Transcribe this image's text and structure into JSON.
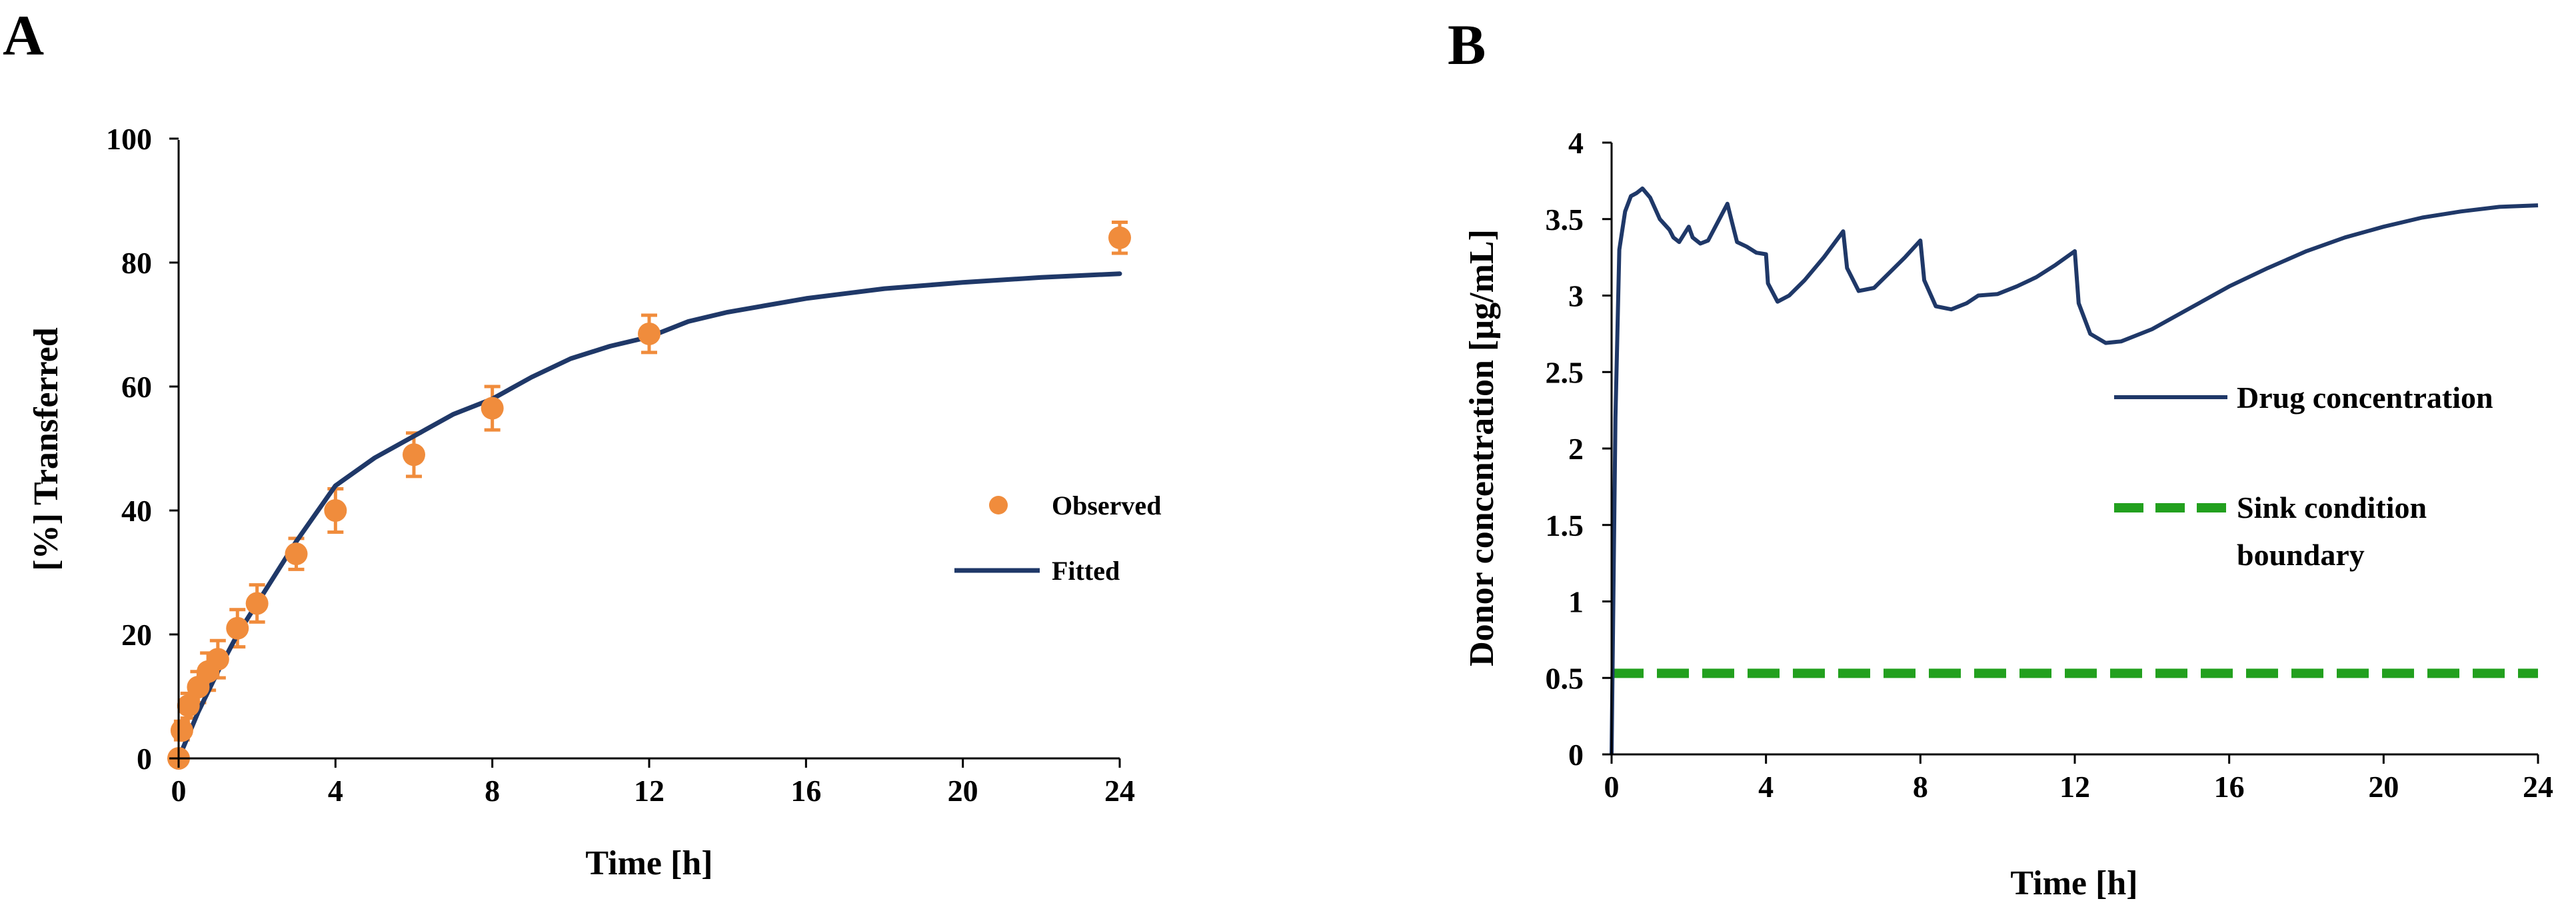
{
  "chart_data": [
    {
      "panel": "A",
      "type": "scatter",
      "xlabel": "Time [h]",
      "ylabel": "[%] Transferred",
      "xlim": [
        0,
        24
      ],
      "ylim": [
        0,
        100
      ],
      "xticks": [
        0,
        4,
        8,
        12,
        16,
        20,
        24
      ],
      "yticks": [
        0,
        20,
        40,
        60,
        80,
        100
      ],
      "grid": false,
      "legend_position": "right",
      "series": [
        {
          "name": "Observed",
          "kind": "points",
          "color": "#F08C3C",
          "x": [
            0,
            0.083,
            0.25,
            0.5,
            0.75,
            1,
            1.5,
            2,
            3,
            4,
            6,
            8,
            12,
            24
          ],
          "y": [
            0,
            4.5,
            8.5,
            11.5,
            14,
            16,
            21,
            25,
            33,
            40,
            49,
            56.5,
            68.5,
            84
          ],
          "err": [
            0,
            1.5,
            2,
            2.5,
            3,
            3,
            3,
            3,
            2.5,
            3.5,
            3.5,
            3.5,
            3,
            2.5
          ]
        },
        {
          "name": "Fitted",
          "kind": "line",
          "color": "#1F3868",
          "x": [
            0,
            0.2,
            0.5,
            1,
            1.5,
            2,
            3,
            4,
            5,
            6,
            7,
            8,
            9,
            10,
            11,
            12,
            13,
            14,
            16,
            18,
            20,
            22,
            24
          ],
          "y": [
            0,
            3,
            7.5,
            14,
            20,
            25,
            35,
            44,
            48.5,
            52,
            55.5,
            58,
            61.5,
            64.5,
            66.5,
            68,
            70.5,
            72,
            74.2,
            75.8,
            76.8,
            77.6,
            78.2
          ]
        }
      ]
    },
    {
      "panel": "B",
      "type": "line",
      "xlabel": "Time [h]",
      "ylabel": "Donor concentration [µg/mL]",
      "xlim": [
        0,
        24
      ],
      "ylim": [
        0,
        4
      ],
      "xticks": [
        0,
        4,
        8,
        12,
        16,
        20,
        24
      ],
      "yticks": [
        "0",
        "0.5",
        "1",
        "1.5",
        "2",
        "2.5",
        "3",
        "3.5",
        "4"
      ],
      "grid": false,
      "legend_position": "right",
      "series": [
        {
          "name": "Drug concentration",
          "kind": "line",
          "color": "#1F3868",
          "x": [
            0,
            0.1,
            0.2,
            0.35,
            0.5,
            0.65,
            0.8,
            1,
            1.25,
            1.5,
            1.6,
            1.75,
            2,
            2.1,
            2.3,
            2.5,
            3,
            3.1,
            3.25,
            3.5,
            3.75,
            4,
            4.05,
            4.3,
            4.6,
            5,
            5.5,
            6,
            6.1,
            6.4,
            6.8,
            7.2,
            7.6,
            8,
            8.1,
            8.4,
            8.8,
            9.2,
            9.5,
            10,
            10.5,
            11,
            11.5,
            12,
            12.1,
            12.4,
            12.8,
            13.2,
            14,
            15,
            16,
            17,
            18,
            19,
            20,
            21,
            22,
            23,
            24
          ],
          "y": [
            0,
            2.2,
            3.3,
            3.55,
            3.65,
            3.67,
            3.7,
            3.64,
            3.5,
            3.43,
            3.38,
            3.35,
            3.45,
            3.38,
            3.34,
            3.36,
            3.6,
            3.5,
            3.35,
            3.32,
            3.28,
            3.27,
            3.08,
            2.96,
            3.0,
            3.1,
            3.25,
            3.42,
            3.18,
            3.03,
            3.05,
            3.15,
            3.25,
            3.36,
            3.1,
            2.93,
            2.91,
            2.95,
            3.0,
            3.01,
            3.06,
            3.12,
            3.2,
            3.29,
            2.95,
            2.75,
            2.69,
            2.7,
            2.78,
            2.92,
            3.06,
            3.18,
            3.29,
            3.38,
            3.45,
            3.51,
            3.55,
            3.58,
            3.59
          ]
        },
        {
          "name": "Sink condition boundary",
          "kind": "dashed",
          "color": "#22A01E",
          "x": [
            0,
            24
          ],
          "y": [
            0.53,
            0.53
          ]
        }
      ],
      "legend_labels": [
        "Drug concentration",
        "Sink condition",
        "boundary"
      ]
    }
  ],
  "panels": {
    "a": {
      "letter": "A",
      "legend": {
        "observed": "Observed",
        "fitted": "Fitted"
      }
    },
    "b": {
      "letter": "B",
      "legend": {
        "line1": "Drug concentration",
        "line2a": "Sink condition",
        "line2b": "boundary"
      }
    }
  }
}
